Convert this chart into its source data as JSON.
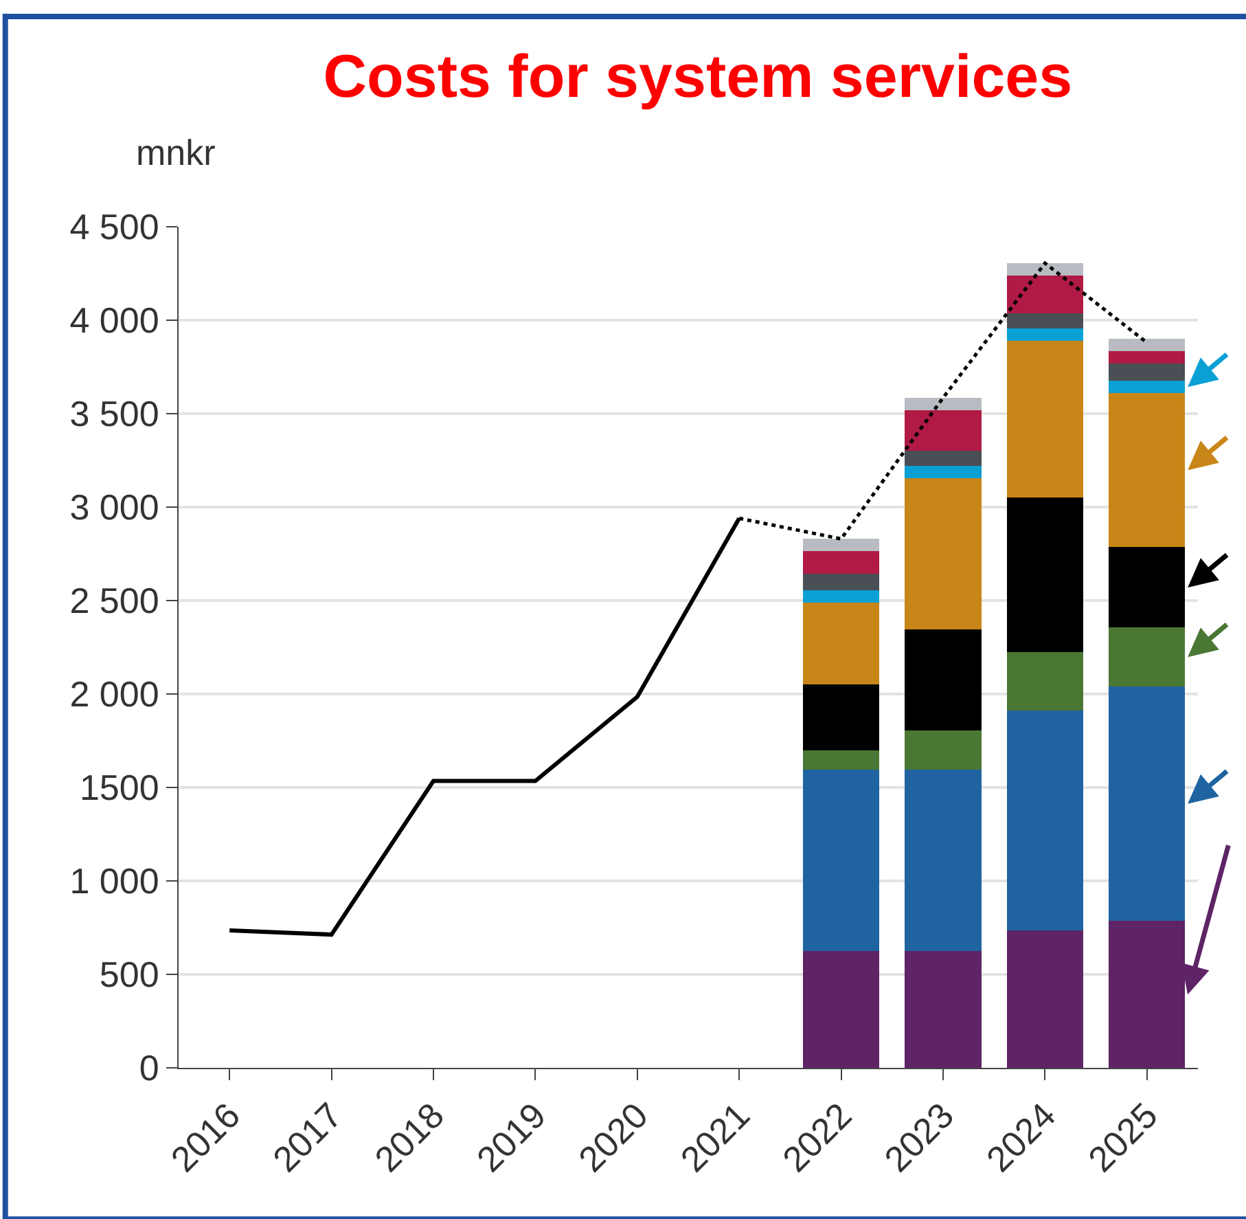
{
  "chart_data": {
    "type": "bar",
    "stacked": true,
    "title": "Costs for system services",
    "ylabel": "mnkr",
    "categories": [
      "2016",
      "2017",
      "2018",
      "2019",
      "2020",
      "2021",
      "2022",
      "2023",
      "2024",
      "2025"
    ],
    "series": [
      {
        "color": "#5e2466",
        "values": [
          null,
          null,
          null,
          null,
          null,
          null,
          625,
          625,
          735,
          785
        ]
      },
      {
        "color": "#1f64a0",
        "values": [
          null,
          null,
          null,
          null,
          null,
          null,
          970,
          970,
          1175,
          1255
        ]
      },
      {
        "color": "#4a7834",
        "values": [
          null,
          null,
          null,
          null,
          null,
          null,
          105,
          210,
          315,
          315
        ]
      },
      {
        "color": "#000000",
        "values": [
          null,
          null,
          null,
          null,
          null,
          null,
          350,
          540,
          825,
          430
        ]
      },
      {
        "color": "#c98618",
        "values": [
          null,
          null,
          null,
          null,
          null,
          null,
          440,
          810,
          840,
          825
        ]
      },
      {
        "color": "#0aa0d4",
        "values": [
          null,
          null,
          null,
          null,
          null,
          null,
          65,
          65,
          65,
          65
        ]
      },
      {
        "color": "#4a4f55",
        "values": [
          null,
          null,
          null,
          null,
          null,
          null,
          90,
          80,
          80,
          95
        ]
      },
      {
        "color": "#b01a45",
        "values": [
          null,
          null,
          null,
          null,
          null,
          null,
          120,
          220,
          205,
          65
        ]
      },
      {
        "color": "#b8bcc2",
        "values": [
          null,
          null,
          null,
          null,
          null,
          null,
          65,
          65,
          65,
          65
        ]
      },
      {
        "type": "line",
        "color": "#000000",
        "line_style": "solid",
        "values": [
          735,
          713,
          1535,
          1535,
          1985,
          2940,
          null,
          null,
          null,
          null
        ]
      },
      {
        "type": "line",
        "color": "#000000",
        "line_style": "dotted",
        "values": [
          null,
          null,
          null,
          null,
          null,
          2940,
          2830,
          3585,
          4305,
          3880
        ]
      }
    ],
    "ylim": [
      0,
      4500
    ],
    "yticks": [
      0,
      500,
      1500,
      {
        "value": 1000,
        "label": "1 000"
      },
      {
        "value": 2000,
        "label": "2 000"
      },
      {
        "value": 2500,
        "label": "2 500"
      },
      {
        "value": 3000,
        "label": "3 000"
      },
      {
        "value": 3500,
        "label": "3 500"
      },
      {
        "value": 4000,
        "label": "4 000"
      },
      {
        "value": 4500,
        "label": "4 500"
      }
    ],
    "grid": "y"
  }
}
